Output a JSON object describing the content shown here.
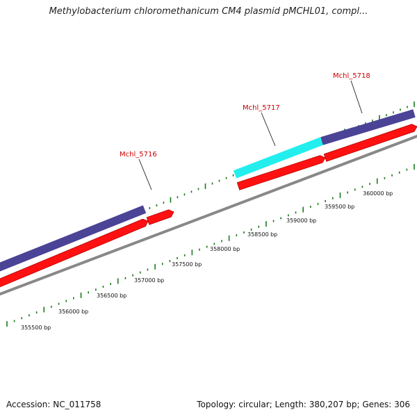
{
  "title": "Methylobacterium chloromethanicum CM4 plasmid pMCHL01, compl...",
  "footer": {
    "accession": "Accession: NC_011758",
    "summary": "Topology: circular; Length: 380,207 bp; Genes: 306"
  },
  "colors": {
    "cds_fill": "#ff1111",
    "cds_dark": "#b00000",
    "gene_fill": "#4b4396",
    "highlight_fill": "#22eeee",
    "backbone": "#888888",
    "tick": "#1a7a1a",
    "label": "#cc0000"
  },
  "scale": {
    "labels": [
      "355500 bp",
      "356000 bp",
      "356500 bp",
      "357000 bp",
      "357500 bp",
      "358000 bp",
      "358500 bp",
      "359000 bp",
      "359500 bp",
      "360000 bp"
    ]
  },
  "genes": [
    {
      "name": "Mchl_5716"
    },
    {
      "name": "Mchl_5717"
    },
    {
      "name": "Mchl_5718"
    }
  ]
}
